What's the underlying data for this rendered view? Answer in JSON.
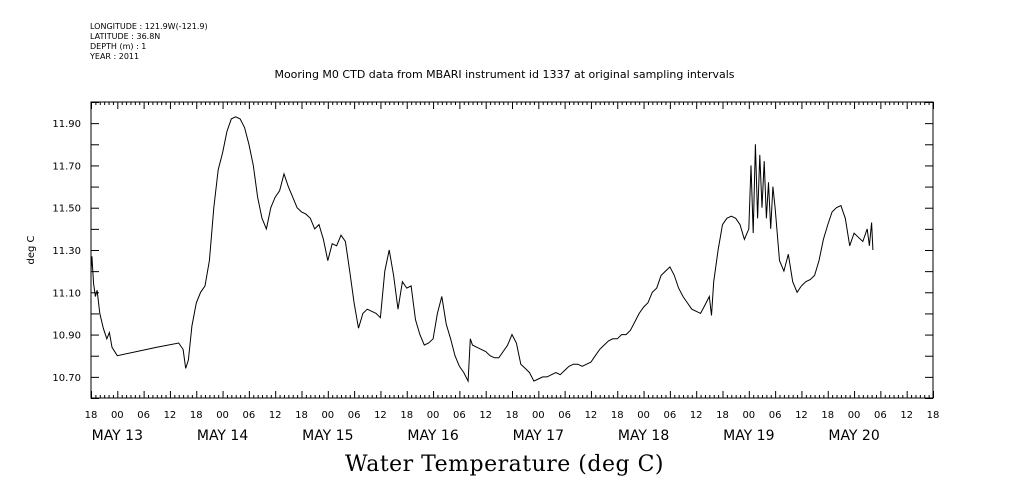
{
  "metadata": [
    "LONGITUDE : 121.9W(-121.9)",
    "LATITUDE : 36.8N",
    "DEPTH (m) : 1",
    "YEAR : 2011"
  ],
  "chart_data": {
    "type": "line",
    "title": "Mooring M0 CTD data from MBARI instrument id 1337 at original sampling intervals",
    "xlabel": "Water Temperature (deg C)",
    "ylabel": "deg C",
    "ylim": [
      10.6,
      12.0
    ],
    "yticks": [
      "10.70",
      "10.90",
      "11.10",
      "11.30",
      "11.50",
      "11.70",
      "11.90"
    ],
    "x_hour_labels": [
      "18",
      "00",
      "06",
      "12",
      "18",
      "00",
      "06",
      "12",
      "18",
      "00",
      "06",
      "12",
      "18",
      "00",
      "06",
      "12",
      "18",
      "00",
      "06",
      "12",
      "18",
      "00",
      "06",
      "12",
      "18",
      "00",
      "06",
      "12",
      "18",
      "00",
      "06",
      "12",
      "18"
    ],
    "x_day_labels": [
      {
        "label": "MAY 13",
        "hour": 0
      },
      {
        "label": "MAY 14",
        "hour": 24
      },
      {
        "label": "MAY 15",
        "hour": 48
      },
      {
        "label": "MAY 16",
        "hour": 72
      },
      {
        "label": "MAY 17",
        "hour": 96
      },
      {
        "label": "MAY 18",
        "hour": 120
      },
      {
        "label": "MAY 19",
        "hour": 144
      },
      {
        "label": "MAY 20",
        "hour": 168
      }
    ],
    "xlim_hours": [
      -6,
      186
    ],
    "grid": false,
    "series": [
      {
        "points": [
          [
            -6,
            11.2
          ],
          [
            -5.8,
            11.27
          ],
          [
            -5.4,
            11.14
          ],
          [
            -5,
            11.08
          ],
          [
            -4.6,
            11.11
          ],
          [
            -4,
            11.0
          ],
          [
            -3.2,
            10.93
          ],
          [
            -2.4,
            10.88
          ],
          [
            -1.8,
            10.91
          ],
          [
            -1.2,
            10.84
          ],
          [
            0,
            10.8
          ],
          [
            9,
            10.84
          ],
          [
            14,
            10.86
          ],
          [
            15,
            10.83
          ],
          [
            15.6,
            10.74
          ],
          [
            16.2,
            10.78
          ],
          [
            17,
            10.94
          ],
          [
            18,
            11.05
          ],
          [
            19,
            11.1
          ],
          [
            20,
            11.13
          ],
          [
            21,
            11.25
          ],
          [
            22,
            11.5
          ],
          [
            23,
            11.68
          ],
          [
            24,
            11.76
          ],
          [
            25,
            11.86
          ],
          [
            26,
            11.92
          ],
          [
            27,
            11.93
          ],
          [
            28,
            11.92
          ],
          [
            29,
            11.88
          ],
          [
            30,
            11.8
          ],
          [
            31,
            11.7
          ],
          [
            32,
            11.55
          ],
          [
            33,
            11.45
          ],
          [
            34,
            11.4
          ],
          [
            35,
            11.5
          ],
          [
            36,
            11.55
          ],
          [
            37,
            11.58
          ],
          [
            38,
            11.66
          ],
          [
            39,
            11.6
          ],
          [
            40,
            11.55
          ],
          [
            41,
            11.5
          ],
          [
            42,
            11.48
          ],
          [
            43,
            11.47
          ],
          [
            44,
            11.45
          ],
          [
            45,
            11.4
          ],
          [
            46,
            11.42
          ],
          [
            47,
            11.35
          ],
          [
            48,
            11.25
          ],
          [
            49,
            11.33
          ],
          [
            50,
            11.32
          ],
          [
            51,
            11.37
          ],
          [
            52,
            11.34
          ],
          [
            53,
            11.2
          ],
          [
            54,
            11.05
          ],
          [
            55,
            10.93
          ],
          [
            56,
            11.0
          ],
          [
            57,
            11.02
          ],
          [
            58,
            11.01
          ],
          [
            59,
            11.0
          ],
          [
            60,
            10.98
          ],
          [
            61,
            11.2
          ],
          [
            62,
            11.3
          ],
          [
            63,
            11.18
          ],
          [
            64,
            11.02
          ],
          [
            65,
            11.15
          ],
          [
            66,
            11.12
          ],
          [
            67,
            11.13
          ],
          [
            68,
            10.97
          ],
          [
            69,
            10.9
          ],
          [
            70,
            10.85
          ],
          [
            71,
            10.86
          ],
          [
            72,
            10.88
          ],
          [
            73,
            11.0
          ],
          [
            74,
            11.08
          ],
          [
            75,
            10.95
          ],
          [
            76,
            10.88
          ],
          [
            77,
            10.8
          ],
          [
            78,
            10.75
          ],
          [
            79,
            10.72
          ],
          [
            80,
            10.68
          ],
          [
            80.5,
            10.88
          ],
          [
            81,
            10.85
          ],
          [
            82,
            10.84
          ],
          [
            83,
            10.83
          ],
          [
            84,
            10.82
          ],
          [
            85,
            10.8
          ],
          [
            86,
            10.79
          ],
          [
            87,
            10.79
          ],
          [
            88,
            10.82
          ],
          [
            89,
            10.85
          ],
          [
            90,
            10.9
          ],
          [
            91,
            10.86
          ],
          [
            92,
            10.76
          ],
          [
            93,
            10.74
          ],
          [
            94,
            10.72
          ],
          [
            95,
            10.68
          ],
          [
            96,
            10.69
          ],
          [
            97,
            10.7
          ],
          [
            98,
            10.7
          ],
          [
            99,
            10.71
          ],
          [
            100,
            10.72
          ],
          [
            101,
            10.71
          ],
          [
            102,
            10.73
          ],
          [
            103,
            10.75
          ],
          [
            104,
            10.76
          ],
          [
            105,
            10.76
          ],
          [
            106,
            10.75
          ],
          [
            107,
            10.76
          ],
          [
            108,
            10.77
          ],
          [
            109,
            10.8
          ],
          [
            110,
            10.83
          ],
          [
            111,
            10.85
          ],
          [
            112,
            10.87
          ],
          [
            113,
            10.88
          ],
          [
            114,
            10.88
          ],
          [
            115,
            10.9
          ],
          [
            116,
            10.9
          ],
          [
            117,
            10.92
          ],
          [
            118,
            10.96
          ],
          [
            119,
            11.0
          ],
          [
            120,
            11.03
          ],
          [
            121,
            11.05
          ],
          [
            122,
            11.1
          ],
          [
            123,
            11.12
          ],
          [
            124,
            11.18
          ],
          [
            125,
            11.2
          ],
          [
            126,
            11.22
          ],
          [
            127,
            11.18
          ],
          [
            128,
            11.12
          ],
          [
            129,
            11.08
          ],
          [
            130,
            11.05
          ],
          [
            131,
            11.02
          ],
          [
            132,
            11.01
          ],
          [
            133,
            11.0
          ],
          [
            134,
            11.04
          ],
          [
            135,
            11.08
          ],
          [
            135.5,
            10.99
          ],
          [
            136,
            11.15
          ],
          [
            137,
            11.3
          ],
          [
            138,
            11.42
          ],
          [
            139,
            11.45
          ],
          [
            140,
            11.46
          ],
          [
            141,
            11.45
          ],
          [
            142,
            11.42
          ],
          [
            143,
            11.35
          ],
          [
            144,
            11.4
          ],
          [
            144.5,
            11.7
          ],
          [
            145,
            11.38
          ],
          [
            145.5,
            11.8
          ],
          [
            146,
            11.45
          ],
          [
            146.5,
            11.75
          ],
          [
            147,
            11.5
          ],
          [
            147.5,
            11.72
          ],
          [
            148,
            11.45
          ],
          [
            148.5,
            11.62
          ],
          [
            149,
            11.4
          ],
          [
            149.5,
            11.6
          ],
          [
            150,
            11.5
          ],
          [
            151,
            11.25
          ],
          [
            152,
            11.2
          ],
          [
            153,
            11.28
          ],
          [
            154,
            11.15
          ],
          [
            155,
            11.1
          ],
          [
            156,
            11.13
          ],
          [
            157,
            11.15
          ],
          [
            158,
            11.16
          ],
          [
            159,
            11.18
          ],
          [
            160,
            11.25
          ],
          [
            161,
            11.35
          ],
          [
            162,
            11.42
          ],
          [
            163,
            11.48
          ],
          [
            164,
            11.5
          ],
          [
            165,
            11.51
          ],
          [
            166,
            11.45
          ],
          [
            167,
            11.32
          ],
          [
            168,
            11.38
          ],
          [
            169,
            11.36
          ],
          [
            170,
            11.34
          ],
          [
            171,
            11.4
          ],
          [
            171.5,
            11.32
          ],
          [
            172,
            11.43
          ],
          [
            172.3,
            11.3
          ]
        ]
      }
    ]
  }
}
